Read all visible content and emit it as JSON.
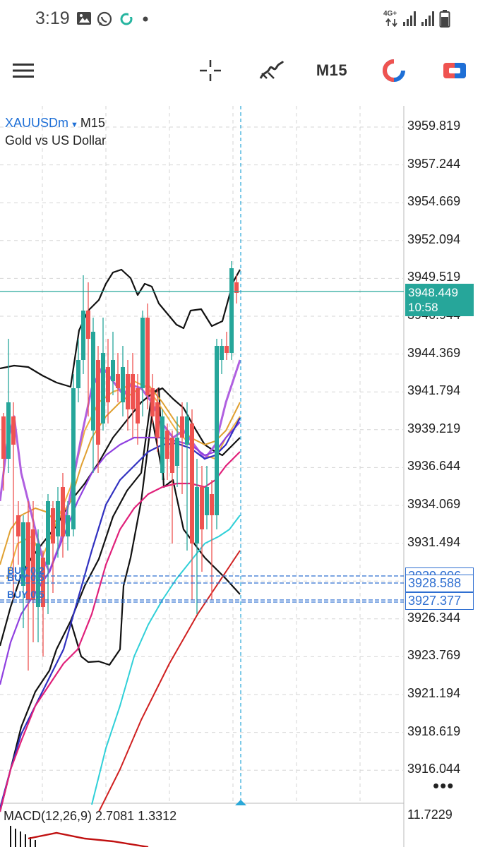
{
  "status_bar": {
    "time": "3:19",
    "network": "4G+",
    "icons": [
      "gallery-icon",
      "whatsapp-icon",
      "sync-icon",
      "dot-icon",
      "data-arrows-icon",
      "signal-icon",
      "signal-icon",
      "battery-icon"
    ]
  },
  "toolbar": {
    "menu_icon": "hamburger-menu-icon",
    "crosshair_icon": "crosshair-icon",
    "indicators_icon": "indicators-icon",
    "timeframe": "M15",
    "chart_type_icon": "chart-type-icon",
    "trade_icon": "trade-icon"
  },
  "chart": {
    "symbol": "XAUUSDm",
    "timeframe": "M15",
    "description": "Gold vs US Dollar",
    "price_labels": [
      "3959.819",
      "3957.244",
      "3954.669",
      "3952.094",
      "3949.519",
      "3946.944",
      "3944.369",
      "3941.794",
      "3939.219",
      "3936.644",
      "3934.069",
      "3931.494",
      "3928.919",
      "3926.344",
      "3923.769",
      "3921.194",
      "3918.619",
      "3916.044"
    ],
    "current_price": "3948.449",
    "countdown": "10:58",
    "orders": [
      {
        "label": "BUY 0.2",
        "price": "3929.006"
      },
      {
        "label": "BUY 0.5",
        "price": "3928.588"
      },
      {
        "label": "BUY 0.5",
        "price": "3927.377"
      }
    ],
    "more_icon": "more-dots-icon"
  },
  "macd": {
    "label": "MACD(12,26,9) 2.7081 1.3312",
    "scale_max": "11.7229"
  },
  "colors": {
    "bull": "#26a69a",
    "bear": "#ef5350",
    "order_line": "#2f6fd1",
    "price_line": "#26a69a"
  }
}
